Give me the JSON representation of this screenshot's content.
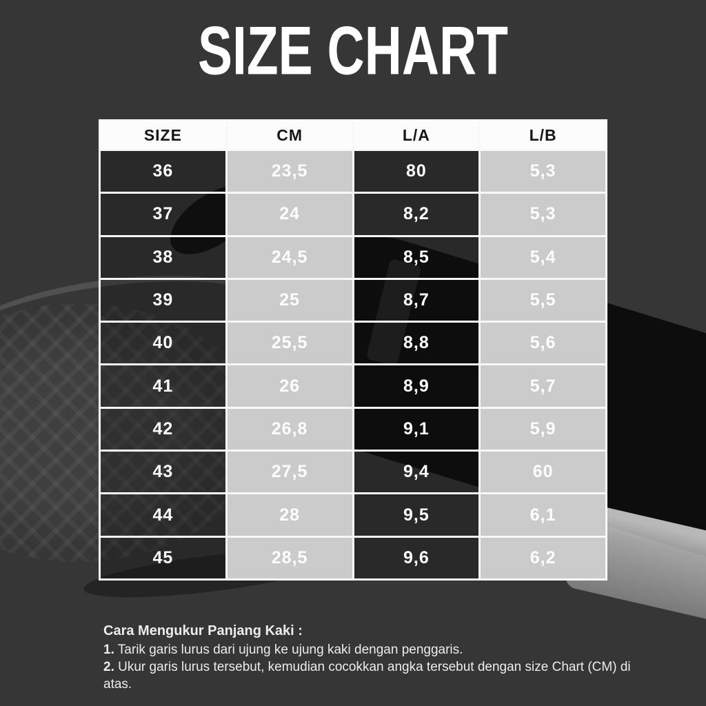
{
  "title": "SIZE CHART",
  "colors": {
    "background": "#363636",
    "table_light_cell": "#cbcbcb",
    "table_dark_cell": "#2b2b2b",
    "header_bg": "#fcfcfc",
    "header_text": "#161616",
    "cell_text": "#ffffff",
    "grid_border": "#f8f8f8",
    "body_text": "#ececec",
    "title_text": "#ffffff"
  },
  "table": {
    "headers": [
      "SIZE",
      "CM",
      "L/A",
      "L/B"
    ],
    "rows": [
      {
        "size": "36",
        "cm": "23,5",
        "la": "80",
        "lb": "5,3"
      },
      {
        "size": "37",
        "cm": "24",
        "la": "8,2",
        "lb": "5,3"
      },
      {
        "size": "38",
        "cm": "24,5",
        "la": "8,5",
        "lb": "5,4"
      },
      {
        "size": "39",
        "cm": "25",
        "la": "8,7",
        "lb": "5,5"
      },
      {
        "size": "40",
        "cm": "25,5",
        "la": "8,8",
        "lb": "5,6"
      },
      {
        "size": "41",
        "cm": "26",
        "la": "8,9",
        "lb": "5,7"
      },
      {
        "size": "42",
        "cm": "26,8",
        "la": "9,1",
        "lb": "5,9"
      },
      {
        "size": "43",
        "cm": "27,5",
        "la": "9,4",
        "lb": "60"
      },
      {
        "size": "44",
        "cm": "28",
        "la": "9,5",
        "lb": "6,1"
      },
      {
        "size": "45",
        "cm": "28,5",
        "la": "9,6",
        "lb": "6,2"
      }
    ]
  },
  "instructions": {
    "heading": "Cara Mengukur Panjang Kaki :",
    "steps": [
      {
        "num": "1.",
        "text": "Tarik garis lurus dari ujung ke ujung kaki dengan penggaris."
      },
      {
        "num": "2.",
        "text": "Ukur garis lurus tersebut, kemudian cocokkan angka tersebut dengan size Chart (CM) di atas."
      }
    ]
  }
}
